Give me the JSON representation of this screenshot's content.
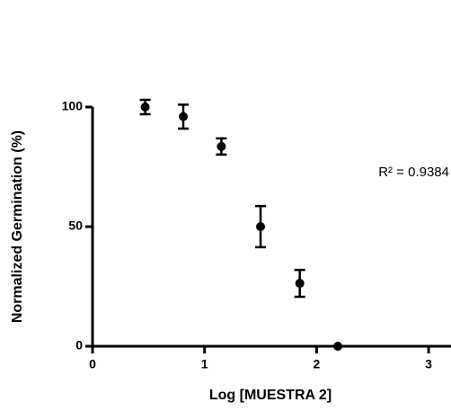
{
  "chart_data": {
    "type": "scatter",
    "xlabel": "Log [MUESTRA 2]",
    "ylabel": "Normalized Germination (%)",
    "annotation": "R² = 0.9384",
    "x": [
      0.47,
      0.81,
      1.15,
      1.5,
      1.85,
      2.19
    ],
    "series": [
      {
        "color": "#000000",
        "values": [
          100,
          96,
          83.5,
          50,
          26.3,
          0
        ],
        "errors": [
          3,
          5,
          3.4,
          8.6,
          5.6,
          0
        ]
      }
    ],
    "xlim": [
      0,
      3.2
    ],
    "xticks": [
      0,
      1,
      2,
      3
    ],
    "ylim": [
      0,
      100
    ],
    "yticks": [
      0,
      50,
      100
    ]
  }
}
